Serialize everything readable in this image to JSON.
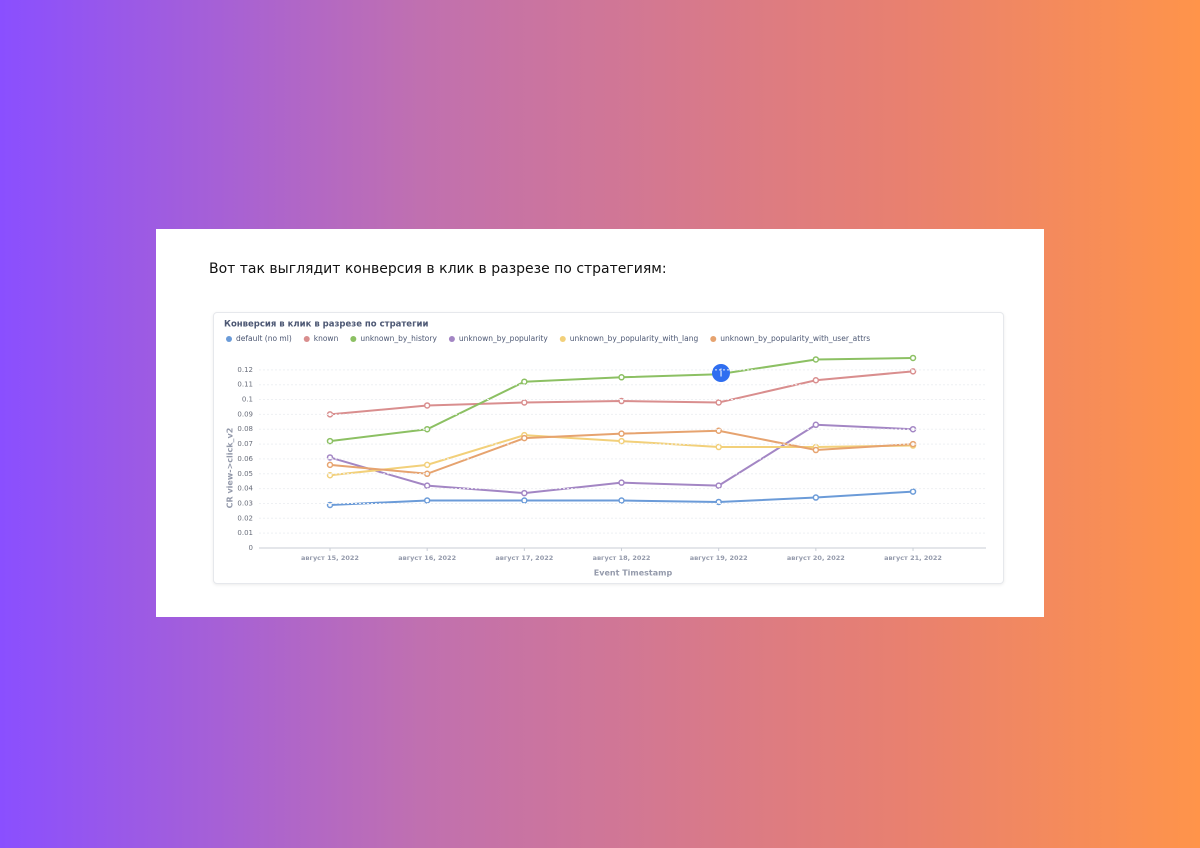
{
  "caption": "Вот так выглядит конверсия в клик в разрезе по стратегиям:",
  "chart_data": {
    "type": "line",
    "title": "Конверсия в клик в разрезе по стратегии",
    "x_label": "Event Timestamp",
    "y_label": "CR view->click_v2",
    "categories": [
      "август 15, 2022",
      "август 16, 2022",
      "август 17, 2022",
      "август 18, 2022",
      "август 19, 2022",
      "август 20, 2022",
      "август 21, 2022"
    ],
    "ylim": [
      0,
      0.13
    ],
    "yticks": [
      0,
      0.01,
      0.02,
      0.03,
      0.04,
      0.05,
      0.06,
      0.07,
      0.08,
      0.09,
      0.1,
      0.11,
      0.12
    ],
    "grid": true,
    "legend": "top",
    "series": [
      {
        "name": "default (no ml)",
        "color": "#6b9bd8",
        "values": [
          0.029,
          0.032,
          0.032,
          0.032,
          0.031,
          0.034,
          0.038
        ]
      },
      {
        "name": "known",
        "color": "#d98e8e",
        "values": [
          0.09,
          0.096,
          0.098,
          0.099,
          0.098,
          0.113,
          0.119
        ]
      },
      {
        "name": "unknown_by_history",
        "color": "#8cc063",
        "values": [
          0.072,
          0.08,
          0.112,
          0.115,
          0.117,
          0.127,
          0.128
        ]
      },
      {
        "name": "unknown_by_popularity",
        "color": "#a386c4",
        "values": [
          0.061,
          0.042,
          0.037,
          0.044,
          0.042,
          0.083,
          0.08
        ]
      },
      {
        "name": "unknown_by_popularity_with_lang",
        "color": "#f2d07a",
        "values": [
          0.049,
          0.056,
          0.076,
          0.072,
          0.068,
          0.068,
          0.069
        ]
      },
      {
        "name": "unknown_by_popularity_with_user_attrs",
        "color": "#e6a36f",
        "values": [
          0.056,
          0.05,
          0.074,
          0.077,
          0.079,
          0.066,
          0.07
        ]
      }
    ]
  }
}
